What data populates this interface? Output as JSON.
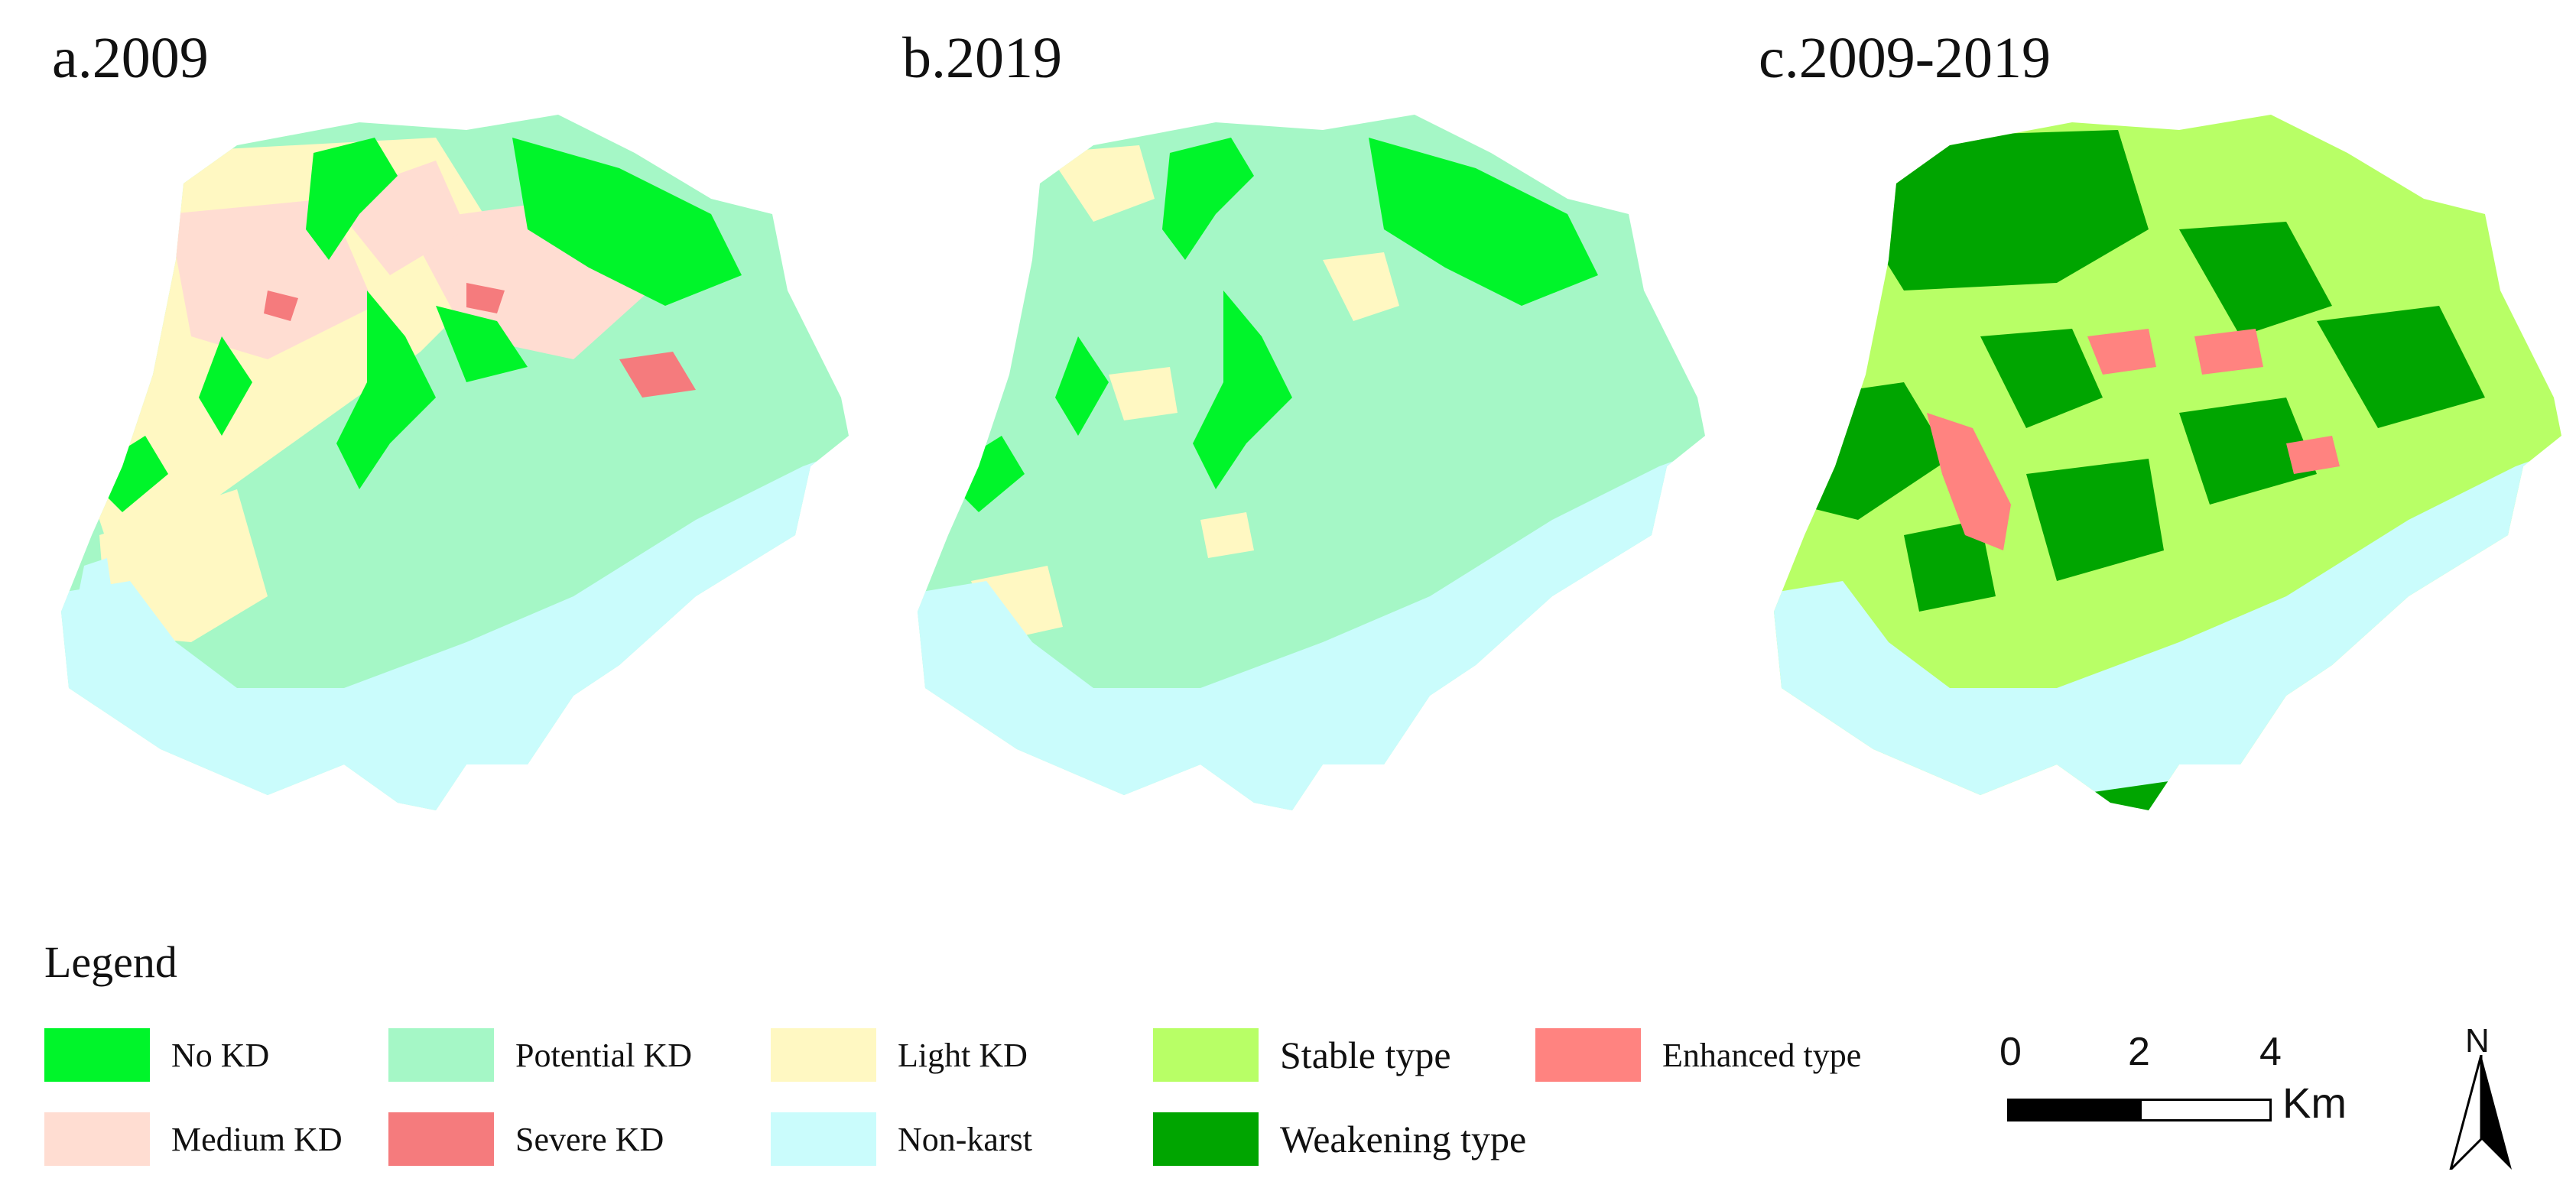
{
  "titles": {
    "a": "a.2009",
    "b": "b.2019",
    "c": "c.2009-2019"
  },
  "legend": {
    "title": "Legend",
    "items": [
      {
        "label": "No KD",
        "color": "#00f52a"
      },
      {
        "label": "Potential KD",
        "color": "#a5f7c6"
      },
      {
        "label": "Light KD",
        "color": "#fff8c2"
      },
      {
        "label": "Stable type",
        "color": "#b8ff66"
      },
      {
        "label": "Enhanced type",
        "color": "#ff8380"
      },
      {
        "label": "Medium KD",
        "color": "#ffddd2"
      },
      {
        "label": "Severe KD",
        "color": "#f57b7d"
      },
      {
        "label": "Non-karst",
        "color": "#cafcfc"
      },
      {
        "label": "Weakening type",
        "color": "#00a500"
      }
    ]
  },
  "scale_bar": {
    "ticks": [
      "0",
      "2",
      "4"
    ],
    "unit": "Km"
  },
  "north_arrow": {
    "label": "N"
  },
  "colors": {
    "no_kd": "#00f52a",
    "potential_kd": "#a5f7c6",
    "light_kd": "#fff8c2",
    "medium_kd": "#ffddd2",
    "severe_kd": "#f57b7d",
    "non_karst": "#cafcfc",
    "stable": "#b8ff66",
    "enhanced": "#ff8380",
    "weakening": "#00a500"
  }
}
